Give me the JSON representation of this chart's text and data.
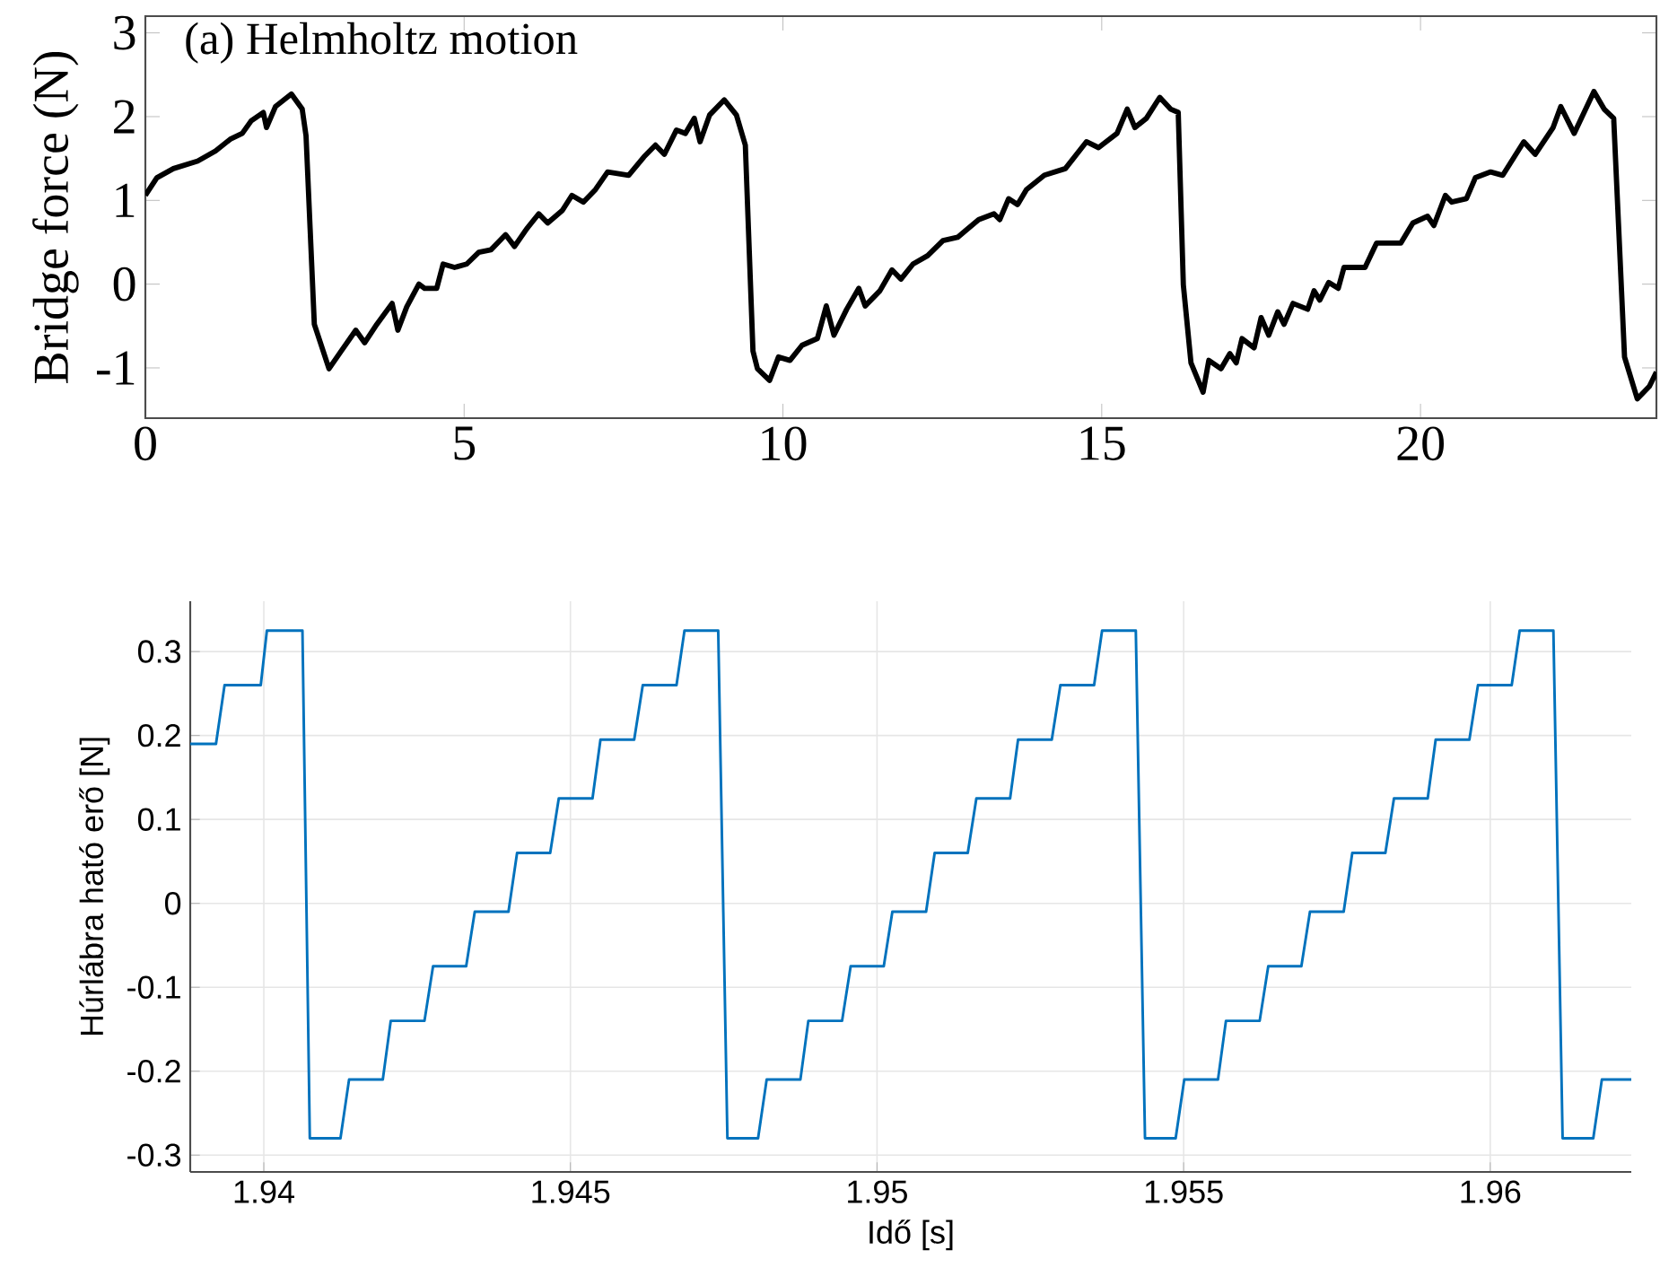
{
  "chart_data": [
    {
      "type": "line",
      "title": "(a) Helmholtz motion",
      "ylabel": "Bridge force (N)",
      "xlim": [
        0,
        23.7
      ],
      "ylim": [
        -1.6,
        3.2
      ],
      "xticks": [
        0,
        5,
        10,
        15,
        20
      ],
      "yticks": [
        -1,
        0,
        1,
        2,
        3
      ],
      "series": [
        {
          "color": "#000000",
          "x": [
            0,
            0.18,
            0.44,
            0.82,
            1.1,
            1.33,
            1.52,
            1.66,
            1.85,
            1.9,
            2.04,
            2.29,
            2.46,
            2.52,
            2.65,
            2.88,
            3.07,
            3.3,
            3.44,
            3.63,
            3.87,
            3.96,
            4.1,
            4.29,
            4.38,
            4.57,
            4.67,
            4.85,
            5.04,
            5.23,
            5.42,
            5.65,
            5.79,
            5.98,
            6.17,
            6.31,
            6.54,
            6.69,
            6.87,
            7.06,
            7.25,
            7.58,
            7.82,
            8.0,
            8.14,
            8.33,
            8.47,
            8.61,
            8.7,
            8.85,
            9.08,
            9.27,
            9.41,
            9.53,
            9.6,
            9.79,
            9.93,
            10.11,
            10.3,
            10.54,
            10.68,
            10.8,
            11.0,
            11.19,
            11.29,
            11.52,
            11.71,
            11.85,
            12.04,
            12.27,
            12.51,
            12.74,
            13.07,
            13.31,
            13.4,
            13.54,
            13.68,
            13.82,
            14.1,
            14.43,
            14.76,
            14.95,
            15.24,
            15.4,
            15.52,
            15.7,
            15.91,
            16.08,
            16.2,
            16.28,
            16.4,
            16.59,
            16.68,
            16.87,
            17.01,
            17.11,
            17.2,
            17.39,
            17.5,
            17.62,
            17.76,
            17.86,
            18.0,
            18.23,
            18.33,
            18.42,
            18.56,
            18.71,
            18.8,
            19.13,
            19.31,
            19.69,
            19.88,
            20.11,
            20.21,
            20.39,
            20.49,
            20.72,
            20.86,
            21.1,
            21.29,
            21.62,
            21.8,
            22.08,
            22.2,
            22.41,
            22.72,
            22.88,
            23.03,
            23.2,
            23.4,
            23.59,
            23.7
          ],
          "values": [
            1.06,
            1.27,
            1.38,
            1.47,
            1.59,
            1.73,
            1.8,
            1.95,
            2.05,
            1.87,
            2.12,
            2.27,
            2.09,
            1.77,
            -0.48,
            -1.01,
            -0.8,
            -0.55,
            -0.7,
            -0.48,
            -0.23,
            -0.55,
            -0.27,
            0.0,
            -0.05,
            -0.05,
            0.24,
            0.2,
            0.24,
            0.38,
            0.41,
            0.59,
            0.45,
            0.66,
            0.84,
            0.73,
            0.88,
            1.06,
            0.98,
            1.13,
            1.34,
            1.3,
            1.52,
            1.66,
            1.55,
            1.84,
            1.8,
            1.98,
            1.7,
            2.02,
            2.2,
            2.02,
            1.66,
            -0.8,
            -1.01,
            -1.15,
            -0.87,
            -0.91,
            -0.73,
            -0.65,
            -0.26,
            -0.61,
            -0.3,
            -0.05,
            -0.26,
            -0.08,
            0.17,
            0.06,
            0.24,
            0.34,
            0.52,
            0.56,
            0.77,
            0.84,
            0.77,
            1.02,
            0.95,
            1.13,
            1.3,
            1.38,
            1.7,
            1.63,
            1.8,
            2.09,
            1.87,
            1.98,
            2.23,
            2.09,
            2.05,
            -0.01,
            -0.94,
            -1.29,
            -0.91,
            -1.01,
            -0.83,
            -0.94,
            -0.65,
            -0.76,
            -0.4,
            -0.61,
            -0.33,
            -0.48,
            -0.23,
            -0.3,
            -0.08,
            -0.19,
            0.02,
            -0.05,
            0.2,
            0.2,
            0.49,
            0.49,
            0.73,
            0.81,
            0.7,
            1.06,
            0.98,
            1.02,
            1.27,
            1.34,
            1.3,
            1.7,
            1.55,
            1.87,
            2.12,
            1.8,
            2.3,
            2.09,
            1.98,
            -0.87,
            -1.37,
            -1.22,
            -1.05
          ]
        }
      ]
    },
    {
      "type": "line",
      "xlabel": "Idő [s]",
      "ylabel": "Húrlábra ható erő [N]",
      "grid": true,
      "xlim": [
        1.9388,
        1.9623
      ],
      "ylim": [
        -0.32,
        0.36
      ],
      "xticks": [
        1.94,
        1.945,
        1.95,
        1.955,
        1.96
      ],
      "yticks": [
        -0.3,
        -0.2,
        -0.1,
        0,
        0.1,
        0.2,
        0.3
      ],
      "series": [
        {
          "color": "#0072bd",
          "x": [
            1.9388,
            1.93922,
            1.93936,
            1.93995,
            1.94005,
            1.94063,
            1.94075,
            1.94125,
            1.94139,
            1.94194,
            1.94207,
            1.94262,
            1.94276,
            1.9433,
            1.94344,
            1.94399,
            1.94413,
            1.94467,
            1.94481,
            1.94536,
            1.94549,
            1.94604,
            1.94618,
            1.94673,
            1.94686,
            1.94741,
            1.94756,
            1.94806,
            1.9482,
            1.94875,
            1.94888,
            1.94943,
            1.94957,
            1.95011,
            1.95025,
            1.9508,
            1.95094,
            1.95148,
            1.95162,
            1.95217,
            1.9523,
            1.95285,
            1.95299,
            1.95354,
            1.95367,
            1.95422,
            1.95437,
            1.95487,
            1.95501,
            1.95556,
            1.95569,
            1.95624,
            1.95638,
            1.95692,
            1.95706,
            1.95761,
            1.95775,
            1.95829,
            1.95843,
            1.95898,
            1.95911,
            1.95966,
            1.9598,
            1.96035,
            1.96048,
            1.96103,
            1.96118,
            1.96168,
            1.96182,
            1.9623
          ],
          "values": [
            0.19,
            0.19,
            0.26,
            0.26,
            0.325,
            0.325,
            -0.28,
            -0.28,
            -0.21,
            -0.21,
            -0.14,
            -0.14,
            -0.075,
            -0.075,
            -0.01,
            -0.01,
            0.06,
            0.06,
            0.125,
            0.125,
            0.195,
            0.195,
            0.26,
            0.26,
            0.325,
            0.325,
            -0.28,
            -0.28,
            -0.21,
            -0.21,
            -0.14,
            -0.14,
            -0.075,
            -0.075,
            -0.01,
            -0.01,
            0.06,
            0.06,
            0.125,
            0.125,
            0.195,
            0.195,
            0.26,
            0.26,
            0.325,
            0.325,
            -0.28,
            -0.28,
            -0.21,
            -0.21,
            -0.14,
            -0.14,
            -0.075,
            -0.075,
            -0.01,
            -0.01,
            0.06,
            0.06,
            0.125,
            0.125,
            0.195,
            0.195,
            0.26,
            0.26,
            0.325,
            0.325,
            -0.28,
            -0.28,
            -0.21,
            -0.21
          ]
        }
      ]
    }
  ]
}
